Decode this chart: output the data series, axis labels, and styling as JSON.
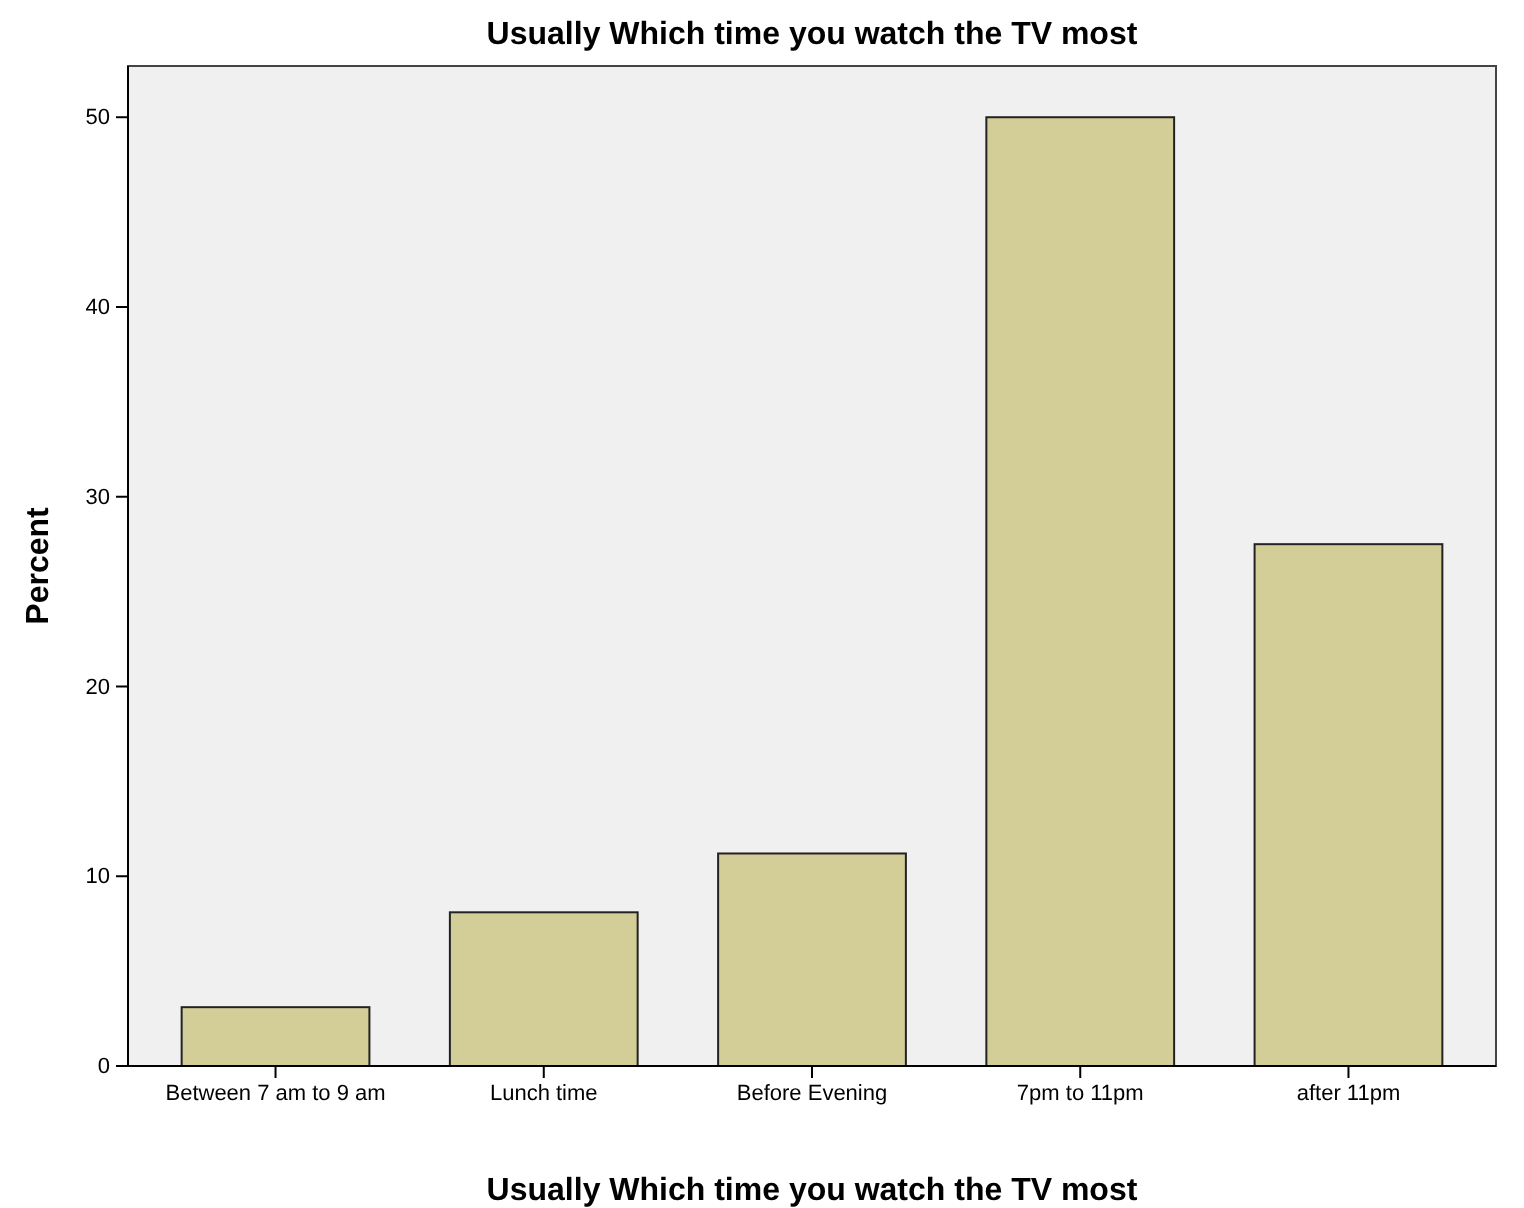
{
  "chart_data": {
    "type": "bar",
    "title": "Usually Which time you watch the TV most",
    "xlabel": "Usually Which time you watch the TV most",
    "ylabel": "Percent",
    "categories": [
      "Between 7 am to 9 am",
      "Lunch time",
      "Before Evening",
      "7pm to 11pm",
      "after 11pm"
    ],
    "values": [
      3.1,
      8.1,
      11.2,
      50.0,
      27.5
    ],
    "color": "#d3ce97",
    "ylim": [
      0,
      52.7
    ],
    "yticks": [
      0,
      10,
      20,
      30,
      40,
      50
    ],
    "grid": false
  }
}
